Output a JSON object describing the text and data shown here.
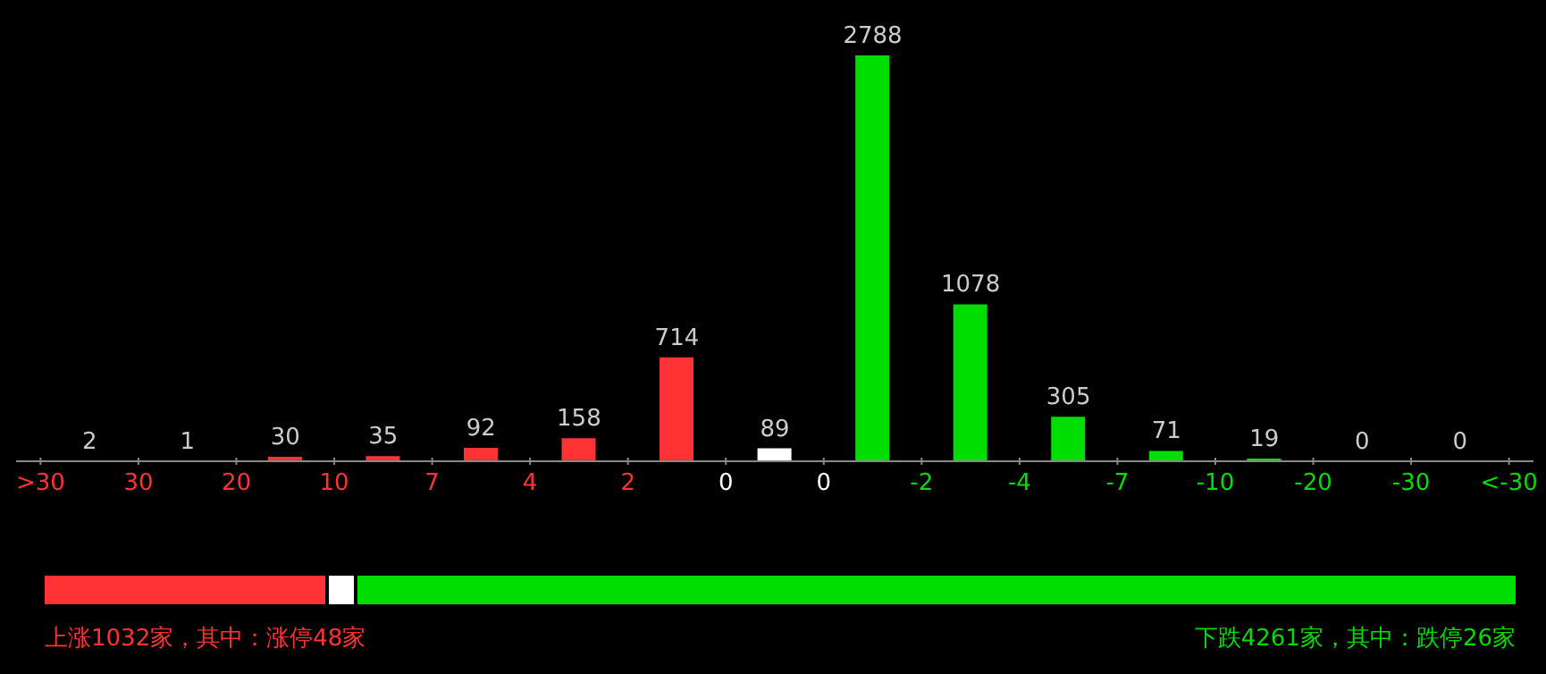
{
  "chart_data": {
    "type": "bar",
    "categories": [
      ">30",
      null,
      "30",
      null,
      "20",
      null,
      "10",
      null,
      "7",
      null,
      "4",
      null,
      "2",
      null,
      "0",
      null,
      "0",
      null,
      "-2",
      null,
      "-4",
      null,
      "-7",
      null,
      "-10",
      null,
      "-20",
      null,
      "-30",
      null,
      "<-30"
    ],
    "values": [
      null,
      2,
      null,
      1,
      null,
      30,
      null,
      35,
      null,
      92,
      null,
      158,
      null,
      714,
      null,
      89,
      null,
      2788,
      null,
      1078,
      null,
      305,
      null,
      71,
      null,
      19,
      null,
      0,
      null,
      0,
      null
    ],
    "colors": [
      null,
      "#ff3333",
      null,
      "#ff3333",
      null,
      "#ff3333",
      null,
      "#ff3333",
      null,
      "#ff3333",
      null,
      "#ff3333",
      null,
      "#ff3333",
      null,
      "#ffffff",
      null,
      "#00dd00",
      null,
      "#00dd00",
      null,
      "#00dd00",
      null,
      "#00dd00",
      null,
      "#00dd00",
      null,
      "#00dd00",
      null,
      "#00dd00",
      null
    ],
    "tick_labels": "x",
    "data_labels": true,
    "annotations": [
      "上涨1032家，其中：涨停48家",
      "下跌4261家，其中：跌停26家"
    ]
  }
}
